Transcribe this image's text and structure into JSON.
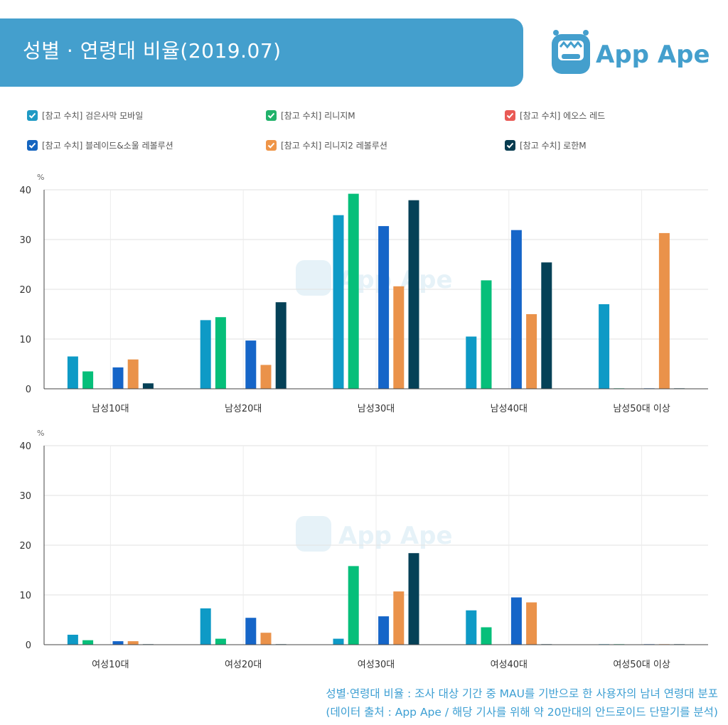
{
  "title": "성별 · 연령대 비율(2019.07)",
  "brand": "App Ape",
  "watermark": "App Ape",
  "colors": {
    "banner": "#449fcd",
    "footnote": "#3d9fd3"
  },
  "legend": [
    {
      "label": "[참고 수치] 검은사막 모바일",
      "color": "#1f9ac4"
    },
    {
      "label": "[참고 수치] 리니지M",
      "color": "#21b26b"
    },
    {
      "label": "[참고 수치] 에오스 레드",
      "color": "#e95a55"
    },
    {
      "label": "[참고 수치] 블레이드&소울 레볼루션",
      "color": "#1565c0"
    },
    {
      "label": "[참고 수치] 리니지2 레볼루션",
      "color": "#ef9548"
    },
    {
      "label": "[참고 수치] 로한M",
      "color": "#073c50"
    }
  ],
  "footnote": {
    "line1": "성별·연령대 비율 : 조사 대상 기간 중 MAU를 기반으로 한 사용자의 남녀 연령대 분포",
    "line2": "(데이터 출처 : App Ape / 해당 기사를 위해 약 20만대의 안드로이드 단말기를 분석)"
  },
  "chart_data": [
    {
      "type": "bar",
      "unit": "%",
      "ylim": [
        0,
        40
      ],
      "yticks": [
        0,
        10,
        20,
        30,
        40
      ],
      "grid": true,
      "categories": [
        "남성10대",
        "남성20대",
        "남성30대",
        "남성40대",
        "남성50대 이상"
      ],
      "series": [
        {
          "name": "[참고 수치] 검은사막 모바일",
          "color": "#0e9ac6",
          "values": [
            6.5,
            13.8,
            34.9,
            10.5,
            17.0
          ]
        },
        {
          "name": "[참고 수치] 리니지M",
          "color": "#06bf7a",
          "values": [
            3.5,
            14.4,
            39.2,
            21.8,
            0.1
          ]
        },
        {
          "name": "[참고 수치] 에오스 레드",
          "color": "#e95a55",
          "values": [
            0,
            0,
            0,
            0,
            0
          ]
        },
        {
          "name": "[참고 수치] 블레이드&소울 레볼루션",
          "color": "#1565c8",
          "values": [
            4.3,
            9.7,
            32.7,
            31.9,
            0.1
          ]
        },
        {
          "name": "[참고 수치] 리니지2 레볼루션",
          "color": "#ea924a",
          "values": [
            5.9,
            4.8,
            20.6,
            15.0,
            31.3
          ]
        },
        {
          "name": "[참고 수치] 로한M",
          "color": "#054157",
          "values": [
            1.1,
            17.4,
            37.9,
            25.4,
            0.1
          ]
        }
      ]
    },
    {
      "type": "bar",
      "unit": "%",
      "ylim": [
        0,
        40
      ],
      "yticks": [
        0,
        10,
        20,
        30,
        40
      ],
      "grid": true,
      "categories": [
        "여성10대",
        "여성20대",
        "여성30대",
        "여성40대",
        "여성50대 이상"
      ],
      "series": [
        {
          "name": "[참고 수치] 검은사막 모바일",
          "color": "#0e9ac6",
          "values": [
            2.0,
            7.3,
            1.2,
            6.9,
            0.1
          ]
        },
        {
          "name": "[참고 수치] 리니지M",
          "color": "#06bf7a",
          "values": [
            0.9,
            1.2,
            15.8,
            3.5,
            0.1
          ]
        },
        {
          "name": "[참고 수치] 에오스 레드",
          "color": "#e95a55",
          "values": [
            0,
            0,
            0,
            0,
            0
          ]
        },
        {
          "name": "[참고 수치] 블레이드&소울 레볼루션",
          "color": "#1565c8",
          "values": [
            0.7,
            5.4,
            5.7,
            9.5,
            0.1
          ]
        },
        {
          "name": "[참고 수치] 리니지2 레볼루션",
          "color": "#ea924a",
          "values": [
            0.7,
            2.4,
            10.7,
            8.5,
            0.1
          ]
        },
        {
          "name": "[참고 수치] 로한M",
          "color": "#054157",
          "values": [
            0.1,
            0.1,
            18.4,
            0.1,
            0.1
          ]
        }
      ]
    }
  ]
}
